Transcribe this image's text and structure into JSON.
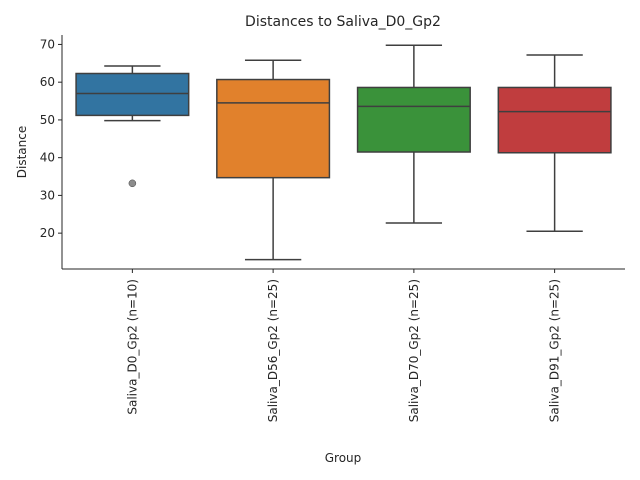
{
  "chart_data": {
    "type": "box",
    "title": "Distances to Saliva_D0_Gp2",
    "xlabel": "Group",
    "ylabel": "Distance",
    "ylim": [
      10.5,
      72.5
    ],
    "yticks": [
      20,
      30,
      40,
      50,
      60,
      70
    ],
    "grid": false,
    "categories": [
      "Saliva_D0_Gp2 (n=10)",
      "Saliva_D56_Gp2 (n=25)",
      "Saliva_D70_Gp2 (n=25)",
      "Saliva_D91_Gp2 (n=25)"
    ],
    "boxes": [
      {
        "category": "Saliva_D0_Gp2 (n=10)",
        "color": "#3274a1",
        "whisker_low": 49.8,
        "q1": 51.2,
        "median": 57.0,
        "q3": 62.3,
        "whisker_high": 64.3,
        "outliers": [
          33.2
        ]
      },
      {
        "category": "Saliva_D56_Gp2 (n=25)",
        "color": "#e1812c",
        "whisker_low": 13.0,
        "q1": 34.7,
        "median": 54.5,
        "q3": 60.7,
        "whisker_high": 65.8,
        "outliers": []
      },
      {
        "category": "Saliva_D70_Gp2 (n=25)",
        "color": "#3a923a",
        "whisker_low": 22.7,
        "q1": 41.5,
        "median": 53.6,
        "q3": 58.6,
        "whisker_high": 69.8,
        "outliers": []
      },
      {
        "category": "Saliva_D91_Gp2 (n=25)",
        "color": "#c03d3e",
        "whisker_low": 20.5,
        "q1": 41.3,
        "median": 52.2,
        "q3": 58.6,
        "whisker_high": 67.2,
        "outliers": []
      }
    ]
  }
}
